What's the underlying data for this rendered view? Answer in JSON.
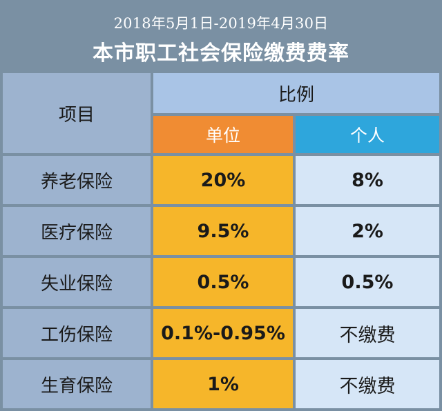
{
  "header": {
    "subtitle": "2018年5月1日-2019年4月30日",
    "title": "本市职工社会保险缴费费率"
  },
  "table": {
    "col_item": "项目",
    "col_ratio": "比例",
    "col_unit": "单位",
    "col_person": "个人",
    "rows": [
      {
        "item": "养老保险",
        "unit": "20%",
        "person": "8%"
      },
      {
        "item": "医疗保险",
        "unit": "9.5%",
        "person": "2%"
      },
      {
        "item": "失业保险",
        "unit": "0.5%",
        "person": "0.5%"
      },
      {
        "item": "工伤保险",
        "unit": "0.1%-0.95%",
        "person": "不缴费"
      },
      {
        "item": "生育保险",
        "unit": "1%",
        "person": "不缴费"
      }
    ]
  },
  "colors": {
    "background": "#7a90a3",
    "label_cells": "#9db3cf",
    "ratio_header": "#a9c4e6",
    "unit_header": "#f08c33",
    "person_header": "#2ea6dc",
    "unit_cells": "#f6b62a",
    "person_cells": "#d6e6f7"
  }
}
